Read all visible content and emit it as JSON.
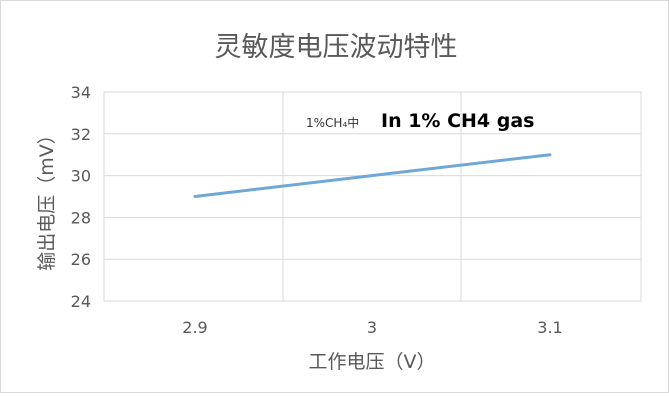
{
  "chart_data": {
    "type": "line",
    "title": "灵敏度电压波动特性",
    "xlabel": "工作电压（V）",
    "ylabel": "输出电压（mV）",
    "categories": [
      "2.9",
      "3",
      "3.1"
    ],
    "series": [
      {
        "name": "",
        "values": [
          29.0,
          30.0,
          31.0
        ],
        "color": "#6fa8d6"
      }
    ],
    "ylim": [
      24,
      34
    ],
    "yticks": [
      24,
      26,
      28,
      30,
      32,
      34
    ],
    "grid": true,
    "annotations": [
      {
        "text": "1%CH₄中",
        "style": "small"
      },
      {
        "text": "In 1% CH4 gas",
        "style": "bold"
      }
    ]
  }
}
